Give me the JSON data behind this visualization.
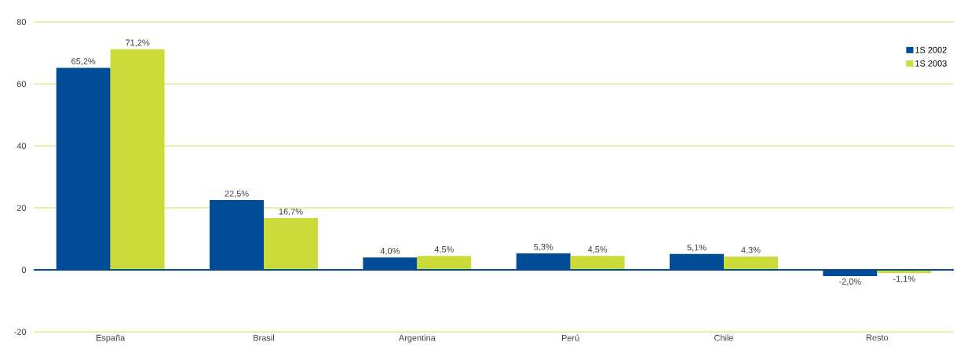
{
  "chart_data": {
    "type": "bar",
    "categories": [
      "España",
      "Brasil",
      "Argentina",
      "Perú",
      "Chile",
      "Resto"
    ],
    "series": [
      {
        "name": "1S 2002",
        "color": "#004c97",
        "values": [
          65.2,
          22.5,
          4.0,
          5.3,
          5.1,
          -2.0
        ],
        "value_labels": [
          "65,2%",
          "22,5%",
          "4,0%",
          "5,3%",
          "5,1%",
          "-2,0%"
        ]
      },
      {
        "name": "1S 2003",
        "color": "#cbdb3a",
        "values": [
          71.2,
          16.7,
          4.5,
          4.5,
          4.3,
          -1.1
        ],
        "value_labels": [
          "71,2%",
          "16,7%",
          "4,5%",
          "4,5%",
          "4,3%",
          "-1,1%"
        ]
      }
    ],
    "ylim": [
      -20,
      80
    ],
    "yticks": [
      -20,
      0,
      20,
      40,
      60,
      80
    ],
    "ref_lines": [
      {
        "axis": "y",
        "value": 0,
        "color": "#004c97"
      }
    ],
    "grid": "y",
    "legend": "top right"
  }
}
